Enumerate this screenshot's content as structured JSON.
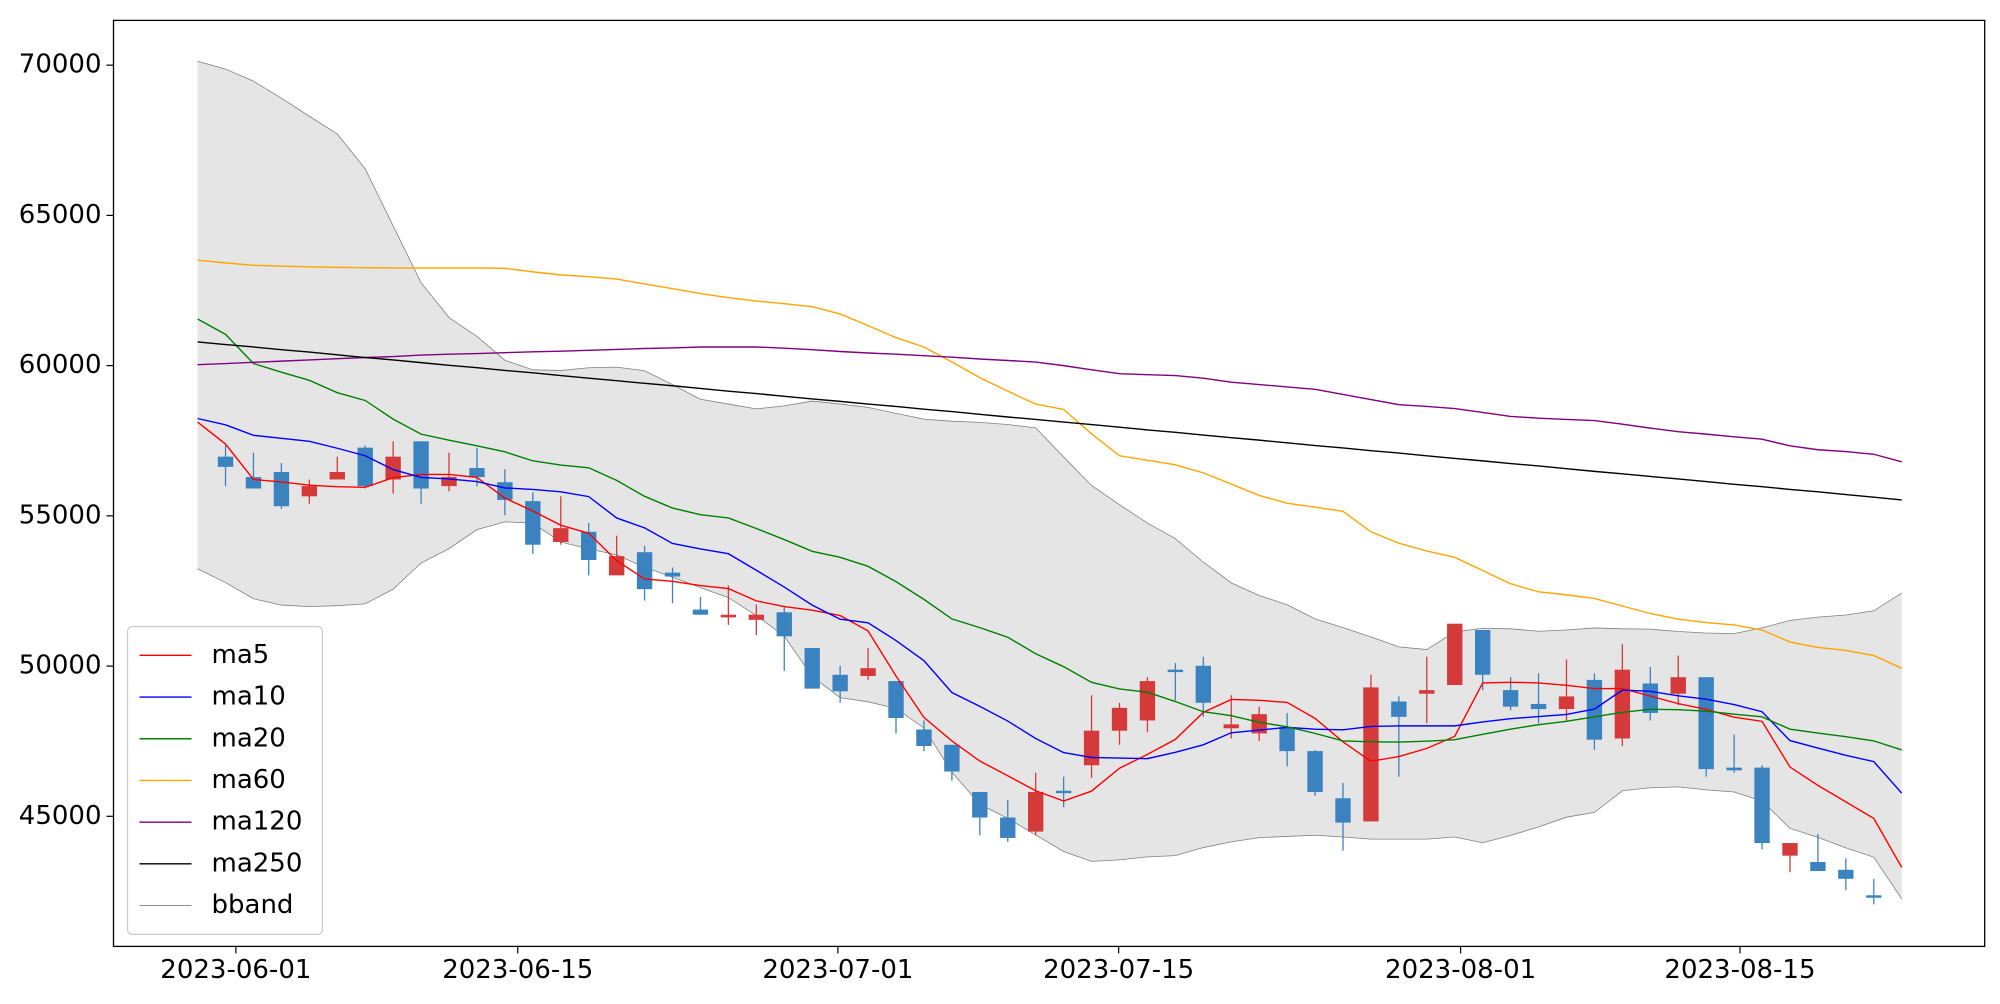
{
  "chart_data": {
    "type": "candlestick",
    "x": [
      0,
      1,
      2,
      3,
      4,
      5,
      6,
      7,
      8,
      9,
      10,
      11,
      12,
      13,
      14,
      15,
      16,
      17,
      18,
      19,
      20,
      21,
      22,
      23,
      24,
      25,
      26,
      27,
      28,
      29,
      30,
      31,
      32,
      33,
      34,
      35,
      36,
      37,
      38,
      39,
      40,
      41,
      42,
      43,
      44,
      45,
      46,
      47,
      48,
      49,
      50,
      51,
      52,
      53,
      54,
      55,
      56,
      57,
      58,
      59,
      60,
      61
    ],
    "xlim": [
      -3.01,
      63.97
    ],
    "xticks": [
      {
        "value": 1.37,
        "label": "2023-06-01"
      },
      {
        "value": 11.46,
        "label": "2023-06-15"
      },
      {
        "value": 22.92,
        "label": "2023-07-01"
      },
      {
        "value": 32.97,
        "label": "2023-07-15"
      },
      {
        "value": 45.21,
        "label": "2023-08-01"
      },
      {
        "value": 55.21,
        "label": "2023-08-15"
      }
    ],
    "ylim": [
      40670,
      71490
    ],
    "yticks": [
      45000,
      50000,
      55000,
      60000,
      65000,
      70000
    ],
    "up_color": "#d43a3a",
    "down_color": "#3a82c0",
    "open": [
      null,
      56970,
      56290,
      56460,
      55650,
      56210,
      57270,
      56210,
      57480,
      55990,
      56590,
      56120,
      55490,
      54130,
      54470,
      53020,
      53790,
      53110,
      51880,
      51620,
      51540,
      51790,
      50600,
      49710,
      49670,
      49500,
      47890,
      47380,
      45810,
      44960,
      44490,
      45850,
      46700,
      47850,
      48190,
      49880,
      50010,
      47930,
      47760,
      47970,
      47170,
      45600,
      44830,
      48820,
      49080,
      49370,
      51200,
      49200,
      48740,
      48570,
      49540,
      47590,
      49420,
      49080,
      49630,
      46620,
      46620,
      43690,
      43480,
      43220,
      42370,
      null
    ],
    "high": [
      null,
      57350,
      57100,
      56760,
      56210,
      56970,
      57350,
      57480,
      57480,
      57100,
      57270,
      56550,
      55780,
      55650,
      54760,
      54340,
      54000,
      53280,
      52300,
      52680,
      52050,
      52010,
      50600,
      50010,
      50600,
      49500,
      48190,
      47380,
      45810,
      45550,
      46450,
      46320,
      49030,
      48780,
      49630,
      50100,
      50310,
      49030,
      48650,
      48440,
      47210,
      46110,
      49710,
      48990,
      50310,
      51410,
      51200,
      49630,
      49760,
      50220,
      49760,
      50730,
      49970,
      50350,
      49630,
      47720,
      46700,
      44110,
      44410,
      43600,
      42920,
      null
    ],
    "low": [
      null,
      55990,
      55910,
      55230,
      55400,
      56210,
      55910,
      55740,
      55400,
      55820,
      55990,
      55020,
      53740,
      54040,
      53020,
      53020,
      52180,
      52090,
      51710,
      51370,
      51030,
      49840,
      49250,
      48780,
      49540,
      47760,
      47170,
      46190,
      44370,
      44150,
      44370,
      45300,
      46280,
      47380,
      47800,
      48860,
      48310,
      47590,
      47510,
      46660,
      45680,
      43860,
      44830,
      46320,
      48100,
      49370,
      49200,
      48530,
      48100,
      48190,
      47210,
      47340,
      48190,
      48700,
      46320,
      46450,
      43900,
      43140,
      43180,
      42540,
      42070,
      null
    ],
    "close": [
      null,
      56630,
      55910,
      55320,
      55990,
      56460,
      55990,
      56970,
      55910,
      56290,
      56290,
      55530,
      54040,
      54590,
      53530,
      53660,
      52560,
      52980,
      51710,
      51710,
      51710,
      50990,
      49250,
      49160,
      49930,
      48270,
      47340,
      46490,
      44960,
      44280,
      45810,
      45770,
      47850,
      48610,
      49500,
      49800,
      48780,
      48060,
      48400,
      47170,
      45810,
      44790,
      49290,
      48310,
      49200,
      51410,
      49710,
      48650,
      48570,
      48990,
      47550,
      49880,
      48440,
      49630,
      46570,
      46530,
      44110,
      44110,
      43180,
      42920,
      42290,
      null
    ],
    "series": [
      {
        "name": "ma5",
        "color": "#ff0000",
        "values": [
          58120,
          57390,
          56210,
          56130,
          56020,
          55970,
          55950,
          56270,
          56380,
          56380,
          56280,
          55590,
          55160,
          54690,
          54420,
          53510,
          52900,
          52820,
          52680,
          52580,
          52170,
          51980,
          51860,
          51680,
          51170,
          49670,
          48290,
          47510,
          46840,
          46350,
          45850,
          45510,
          45840,
          46600,
          47060,
          47560,
          48460,
          48890,
          48860,
          48790,
          48260,
          47480,
          46830,
          46990,
          47260,
          47660,
          49440,
          49460,
          49440,
          49360,
          49250,
          49250,
          49000,
          48750,
          48560,
          48300,
          48160,
          46640,
          46030,
          45480,
          44930,
          43300
        ]
      },
      {
        "name": "ma10",
        "color": "#0000ff",
        "values": [
          58240,
          58030,
          57680,
          57580,
          57480,
          57250,
          57000,
          56540,
          56280,
          56230,
          56140,
          55930,
          55880,
          55800,
          55640,
          54930,
          54600,
          54080,
          53900,
          53740,
          53190,
          52630,
          52030,
          51560,
          51440,
          50850,
          50180,
          49120,
          48660,
          48170,
          47590,
          47120,
          46960,
          46940,
          46920,
          47130,
          47380,
          47780,
          47870,
          47960,
          47900,
          47880,
          47990,
          48010,
          48010,
          48010,
          48140,
          48250,
          48320,
          48390,
          48570,
          49200,
          49160,
          49010,
          48900,
          48720,
          48480,
          47520,
          47270,
          47030,
          46820,
          45770
        ]
      },
      {
        "name": "ma20",
        "color": "#008000",
        "values": [
          61550,
          61040,
          60070,
          59780,
          59510,
          59100,
          58840,
          58220,
          57720,
          57520,
          57330,
          57130,
          56830,
          56690,
          56600,
          56180,
          55650,
          55260,
          55040,
          54930,
          54580,
          54210,
          53820,
          53620,
          53320,
          52810,
          52220,
          51570,
          51280,
          50960,
          50410,
          49980,
          49460,
          49240,
          49130,
          48820,
          48480,
          48350,
          48130,
          47980,
          47760,
          47510,
          47480,
          47470,
          47500,
          47550,
          47730,
          47900,
          48050,
          48160,
          48310,
          48460,
          48560,
          48550,
          48500,
          48400,
          48310,
          47900,
          47770,
          47650,
          47510,
          47210
        ]
      },
      {
        "name": "ma60",
        "color": "#ffa500",
        "values": [
          63510,
          63420,
          63340,
          63310,
          63290,
          63270,
          63260,
          63250,
          63250,
          63250,
          63250,
          63240,
          63120,
          63020,
          62960,
          62880,
          62720,
          62560,
          62400,
          62260,
          62150,
          62060,
          61960,
          61720,
          61330,
          60930,
          60620,
          60120,
          59600,
          59150,
          58720,
          58540,
          57730,
          57000,
          56850,
          56700,
          56430,
          56060,
          55680,
          55420,
          55290,
          55150,
          54470,
          54090,
          53830,
          53620,
          53180,
          52740,
          52470,
          52370,
          52250,
          52000,
          51750,
          51560,
          51450,
          51370,
          51200,
          50800,
          50620,
          50520,
          50350,
          49930
        ]
      },
      {
        "name": "ma120",
        "color": "#800080",
        "values": [
          60030,
          60070,
          60110,
          60150,
          60190,
          60230,
          60270,
          60300,
          60350,
          60380,
          60400,
          60430,
          60460,
          60480,
          60510,
          60540,
          60570,
          60590,
          60620,
          60620,
          60620,
          60580,
          60530,
          60470,
          60420,
          60380,
          60330,
          60280,
          60220,
          60170,
          60120,
          60000,
          59860,
          59730,
          59700,
          59670,
          59580,
          59450,
          59370,
          59290,
          59210,
          59040,
          58870,
          58700,
          58640,
          58570,
          58440,
          58310,
          58250,
          58210,
          58170,
          58050,
          57920,
          57800,
          57720,
          57630,
          57550,
          57330,
          57200,
          57140,
          57050,
          56800
        ]
      },
      {
        "name": "ma250",
        "color": "#000000",
        "values": [
          60790,
          60700,
          60620,
          60530,
          60450,
          60360,
          60270,
          60190,
          60100,
          60010,
          59930,
          59840,
          59760,
          59670,
          59580,
          59500,
          59410,
          59330,
          59240,
          59150,
          59070,
          58980,
          58890,
          58810,
          58720,
          58640,
          58550,
          58470,
          58380,
          58290,
          58210,
          58120,
          58040,
          57950,
          57860,
          57780,
          57690,
          57600,
          57520,
          57430,
          57340,
          57260,
          57170,
          57090,
          57000,
          56910,
          56830,
          56740,
          56660,
          56570,
          56480,
          56400,
          56310,
          56230,
          56140,
          56050,
          55970,
          55880,
          55800,
          55710,
          55620,
          55530
        ]
      }
    ],
    "bband": {
      "name": "bband",
      "color": "#808080",
      "fill": "#e5e5e5",
      "upper": [
        70130,
        69870,
        69470,
        68900,
        68300,
        67710,
        66550,
        64650,
        62760,
        61600,
        60970,
        60180,
        59860,
        59840,
        59930,
        59950,
        59830,
        59370,
        58880,
        58720,
        58560,
        58660,
        58820,
        58720,
        58610,
        58410,
        58220,
        58150,
        58110,
        58040,
        57930,
        56960,
        56010,
        55370,
        54760,
        54240,
        53460,
        52770,
        52350,
        52040,
        51570,
        51280,
        50970,
        50640,
        50550,
        51140,
        51260,
        51240,
        51160,
        51200,
        51270,
        51240,
        51230,
        51150,
        51100,
        51080,
        51270,
        51520,
        51630,
        51700,
        51840,
        52430
      ],
      "lower": [
        53240,
        52780,
        52240,
        52030,
        51980,
        52010,
        52070,
        52560,
        53430,
        53910,
        54540,
        54800,
        54760,
        54130,
        53900,
        53700,
        53290,
        52960,
        52610,
        52280,
        51680,
        51000,
        49650,
        48950,
        48810,
        48590,
        47940,
        46470,
        45400,
        44930,
        44380,
        43830,
        43500,
        43550,
        43650,
        43690,
        43960,
        44150,
        44290,
        44330,
        44370,
        44310,
        44240,
        44240,
        44240,
        44310,
        44120,
        44360,
        44650,
        44970,
        45130,
        45850,
        45950,
        45980,
        45880,
        45810,
        45510,
        44600,
        44300,
        43950,
        43640,
        42250
      ]
    },
    "legend": "lower left"
  }
}
